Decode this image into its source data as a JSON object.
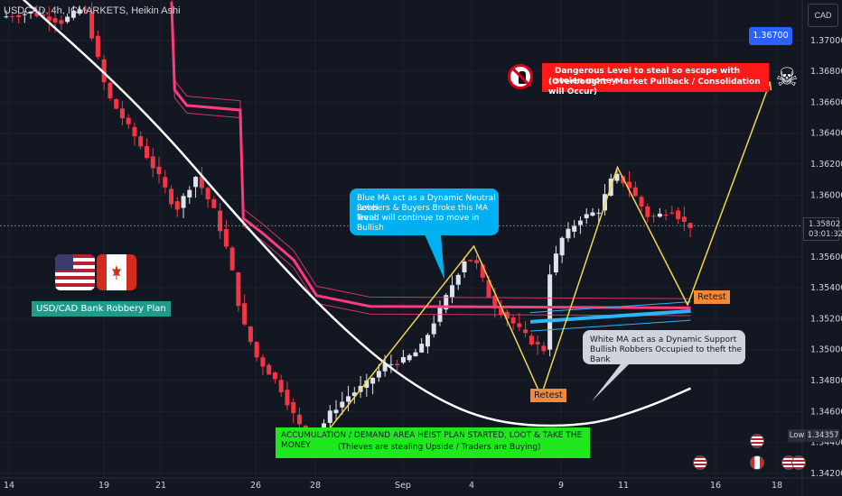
{
  "title": "USDCAD, 4h, ICMARKETS, Heikin Ashi",
  "currency_button": "CAD",
  "colors": {
    "background": "#131722",
    "bull": "#e0e3eb",
    "bear": "#f23645",
    "pink_ma": "#ff3b7a",
    "white_ma": "#ffffff",
    "blue_ma": "#29b6f6",
    "arrow": "#f5d547",
    "accumulation_box": "#1fe81f",
    "danger_box": "#ff1a1a",
    "retest_box": "#f28a3a",
    "plan_label": "#1d9c8c",
    "info_box_blue": "#00b0f0",
    "info_box_grey": "#d1d4dc"
  },
  "labels": {
    "plan": "USD/CAD Bank Robbery Plan",
    "blue_ma_note": [
      "Blue MA act as a Dynamic Neutral Level",
      "Robbers & Buyers Broke this MA level",
      "Trend will continue to move in Bullish"
    ],
    "white_ma_note": [
      "White MA act as a Dynamic Support",
      "Bullish Robbers Occupied to theft the Bank"
    ],
    "danger": [
      "Dangerous Level to steal so escape with stolen money",
      "(Overbought / Market Pullback / Consolidation will Occur)"
    ],
    "accumulation": [
      "ACCUMULATION / DEMAND AREA HEIST PLAN STARTED, LOOT & TAKE THE MONEY",
      "(Thieves are stealing Upside / Traders are Buying)"
    ],
    "retest_1": "Retest",
    "retest_2": "Retest",
    "target_price": "1.36700",
    "current_price": "1.35802",
    "countdown": "03:01:32",
    "low_label": "Low",
    "low_price": "1.34357"
  },
  "chart_data": {
    "type": "candlestick",
    "style": "Heikin Ashi",
    "symbol": "USDCAD",
    "timeframe": "4h",
    "ylim": [
      1.3417,
      1.3725
    ],
    "y_ticks": [
      "1.37000",
      "1.36800",
      "1.36600",
      "1.36400",
      "1.36200",
      "1.36000",
      "1.35600",
      "1.35400",
      "1.35200",
      "1.35000",
      "1.34800",
      "1.34600",
      "1.34400",
      "1.34200"
    ],
    "x_ticks": [
      "14",
      "19",
      "21",
      "26",
      "28",
      "Sep",
      "4",
      "9",
      "11",
      "16",
      "18"
    ],
    "last_price": 1.35802,
    "low": 1.34357,
    "target": 1.367,
    "white_ma": [
      [
        0,
        1.3738
      ],
      [
        90,
        1.3658
      ],
      [
        160,
        1.3578
      ],
      [
        220,
        1.3515
      ],
      [
        270,
        1.3475
      ],
      [
        320,
        1.3452
      ],
      [
        380,
        1.345
      ],
      [
        420,
        1.3462
      ],
      [
        450,
        1.3475
      ]
    ],
    "pink_ma": [
      [
        110,
        1.3725
      ],
      [
        112,
        1.3668
      ],
      [
        120,
        1.3658
      ],
      [
        155,
        1.3655
      ],
      [
        157,
        1.3585
      ],
      [
        170,
        1.3575
      ],
      [
        190,
        1.3558
      ],
      [
        205,
        1.3535
      ],
      [
        240,
        1.3528
      ],
      [
        450,
        1.3527
      ]
    ],
    "blue_ma": [
      [
        345,
        1.3518
      ],
      [
        450,
        1.3525
      ]
    ],
    "trade_path": [
      [
        204,
        1.3437
      ],
      [
        308,
        1.3567
      ],
      [
        352,
        1.347
      ],
      [
        402,
        1.3618
      ],
      [
        448,
        1.3529
      ],
      [
        502,
        1.3673
      ]
    ]
  }
}
